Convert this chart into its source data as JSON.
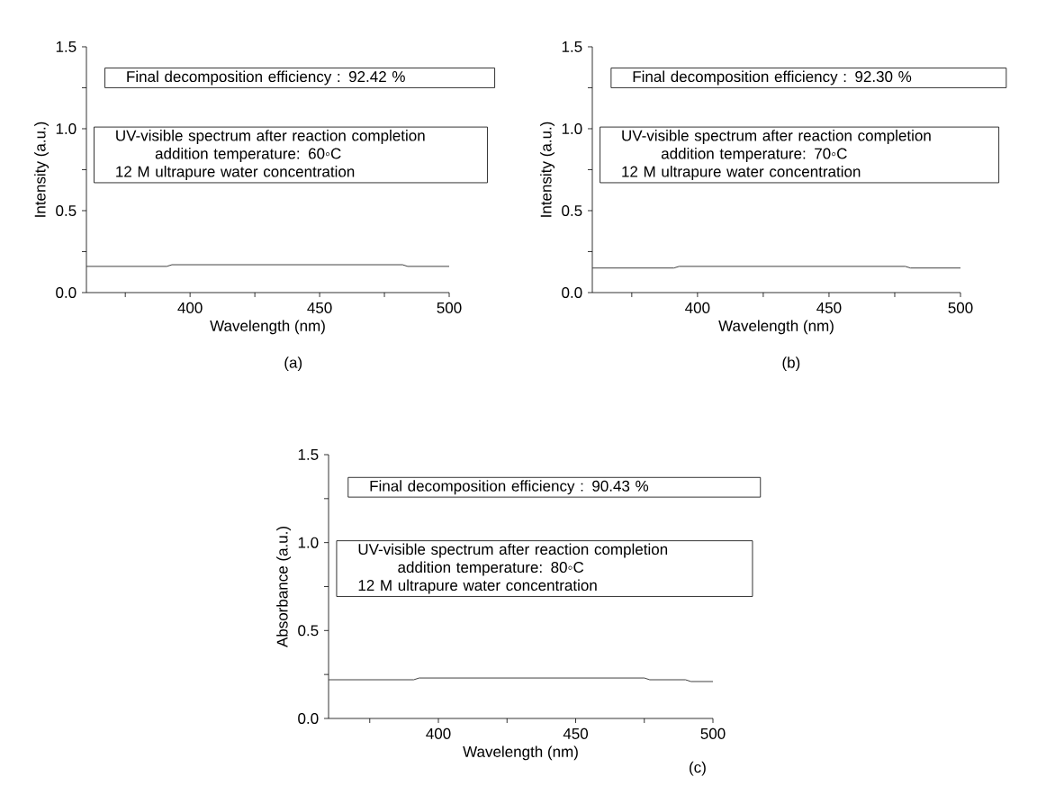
{
  "chart_data": [
    {
      "type": "line",
      "xlabel": "Wavelength (nm)",
      "ylabel": "Intensity (a.u.)",
      "x": [
        360,
        391,
        393,
        482,
        484,
        500
      ],
      "series": [
        {
          "color": "#404040",
          "values": [
            0.16,
            0.16,
            0.17,
            0.17,
            0.16,
            0.16
          ]
        }
      ],
      "xlim": [
        360,
        500
      ],
      "ylim": [
        0,
        1.5
      ],
      "xticks": [
        {
          "value": 375,
          "label": null
        },
        400,
        {
          "value": 425,
          "label": null
        },
        450,
        {
          "value": 475,
          "label": null
        },
        500
      ],
      "yticks": [
        {
          "value": 0,
          "label": "0.0"
        },
        {
          "value": 0.25,
          "label": null
        },
        {
          "value": 0.5,
          "label": "0.5"
        },
        {
          "value": 0.75,
          "label": null
        },
        {
          "value": 1.0,
          "label": "1.0"
        },
        {
          "value": 1.25,
          "label": null
        },
        {
          "value": 1.5,
          "label": "1.5"
        }
      ],
      "annotations": [
        "Final decomposition efficiency : 92.42 %",
        "UV-visible spectrum after reaction completion",
        "addition temperature: 60◦C",
        "12 M ultrapure water concentration",
        "(a)"
      ]
    },
    {
      "type": "line",
      "xlabel": "Wavelength (nm)",
      "ylabel": "Intensity (a.u.)",
      "x": [
        360,
        391,
        393,
        479,
        481,
        500
      ],
      "series": [
        {
          "color": "#404040",
          "values": [
            0.15,
            0.15,
            0.16,
            0.16,
            0.15,
            0.15
          ]
        }
      ],
      "xlim": [
        360,
        500
      ],
      "ylim": [
        0,
        1.5
      ],
      "xticks": [
        {
          "value": 375,
          "label": null
        },
        400,
        {
          "value": 425,
          "label": null
        },
        450,
        {
          "value": 475,
          "label": null
        },
        500
      ],
      "yticks": [
        {
          "value": 0,
          "label": "0.0"
        },
        {
          "value": 0.25,
          "label": null
        },
        {
          "value": 0.5,
          "label": "0.5"
        },
        {
          "value": 0.75,
          "label": null
        },
        {
          "value": 1.0,
          "label": "1.0"
        },
        {
          "value": 1.25,
          "label": null
        },
        {
          "value": 1.5,
          "label": "1.5"
        }
      ],
      "annotations": [
        "Final decomposition efficiency : 92.30 %",
        "UV-visible spectrum after reaction completion",
        "addition temperature: 70◦C",
        "12 M ultrapure water concentration",
        "(b)"
      ]
    },
    {
      "type": "line",
      "xlabel": "Wavelength (nm)",
      "ylabel": "Absorbance (a.u.)",
      "x": [
        360,
        391,
        393,
        475,
        477,
        490,
        492,
        500
      ],
      "series": [
        {
          "color": "#404040",
          "values": [
            0.22,
            0.22,
            0.23,
            0.23,
            0.22,
            0.22,
            0.21,
            0.21
          ]
        }
      ],
      "xlim": [
        360,
        500
      ],
      "ylim": [
        0,
        1.5
      ],
      "xticks": [
        {
          "value": 375,
          "label": null
        },
        400,
        {
          "value": 425,
          "label": null
        },
        450,
        {
          "value": 475,
          "label": null
        },
        500
      ],
      "yticks": [
        {
          "value": 0,
          "label": "0.0"
        },
        {
          "value": 0.25,
          "label": null
        },
        {
          "value": 0.5,
          "label": "0.5"
        },
        {
          "value": 0.75,
          "label": null
        },
        {
          "value": 1.0,
          "label": "1.0"
        },
        {
          "value": 1.25,
          "label": null
        },
        {
          "value": 1.5,
          "label": "1.5"
        }
      ],
      "annotations": [
        "Final decomposition efficiency : 90.43 %",
        "UV-visible spectrum after reaction completion",
        "addition temperature: 80◦C",
        "12 M ultrapure water concentration",
        "(c)"
      ]
    }
  ]
}
